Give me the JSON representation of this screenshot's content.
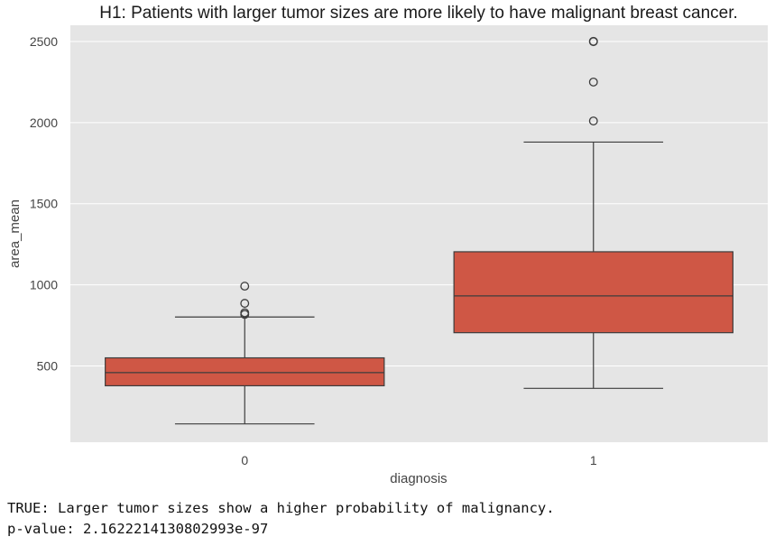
{
  "chart_data": {
    "type": "box",
    "title": "H1: Patients with larger tumor sizes are more likely to have malignant breast cancer.",
    "xlabel": "diagnosis",
    "ylabel": "area_mean",
    "categories": [
      "0",
      "1"
    ],
    "yticks": [
      500,
      1000,
      1500,
      2000,
      2500
    ],
    "ylim": [
      30,
      2600
    ],
    "grid": true,
    "colors": {
      "background": "#e5e5e5",
      "box_fill": "#cf5745",
      "line": "#3d3d3d",
      "grid": "#ffffff"
    },
    "boxes": [
      {
        "category": "0",
        "whisker_low": 143,
        "q1": 378,
        "median": 459,
        "q3": 550,
        "whisker_high": 802,
        "outliers": [
          818,
          828,
          886,
          992
        ]
      },
      {
        "category": "1",
        "whisker_low": 362,
        "q1": 705,
        "median": 932,
        "q3": 1204,
        "whisker_high": 1880,
        "outliers": [
          2010,
          2250,
          2499,
          2501
        ]
      }
    ]
  },
  "output": {
    "line1": "TRUE: Larger tumor sizes show a higher probability of malignancy.",
    "line2": "p-value: 2.1622214130802993e-97"
  }
}
